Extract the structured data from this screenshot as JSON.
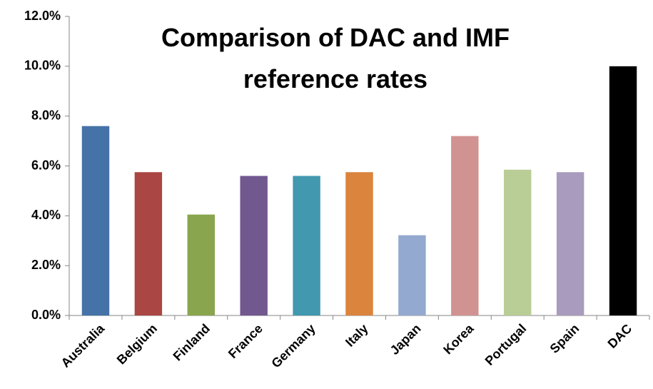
{
  "chart_data": {
    "type": "bar",
    "title": "Comparison of DAC and IMF reference rates",
    "categories": [
      "Australia",
      "Belgium",
      "Finland",
      "France",
      "Germany",
      "Italy",
      "Japan",
      "Korea",
      "Portugal",
      "Spain",
      "DAC"
    ],
    "values": [
      7.6,
      5.75,
      4.05,
      5.6,
      5.6,
      5.75,
      3.22,
      7.2,
      5.85,
      5.75,
      10
    ],
    "colors": [
      "#4572a7",
      "#aa4643",
      "#89a54e",
      "#71588f",
      "#4198af",
      "#db843d",
      "#93a9cf",
      "#d19392",
      "#b9cd96",
      "#a99bbd",
      "#000000"
    ],
    "ylim": [
      0,
      12
    ],
    "yticks": [
      {
        "value": 0,
        "label": "0.0%"
      },
      {
        "value": 2,
        "label": "2.0%"
      },
      {
        "value": 4,
        "label": "4.0%"
      },
      {
        "value": 6,
        "label": "6.0%"
      },
      {
        "value": 8,
        "label": "8.0%"
      },
      {
        "value": 10,
        "label": "10.0%"
      },
      {
        "value": 12,
        "label": "12.0%"
      }
    ],
    "grid": false
  }
}
